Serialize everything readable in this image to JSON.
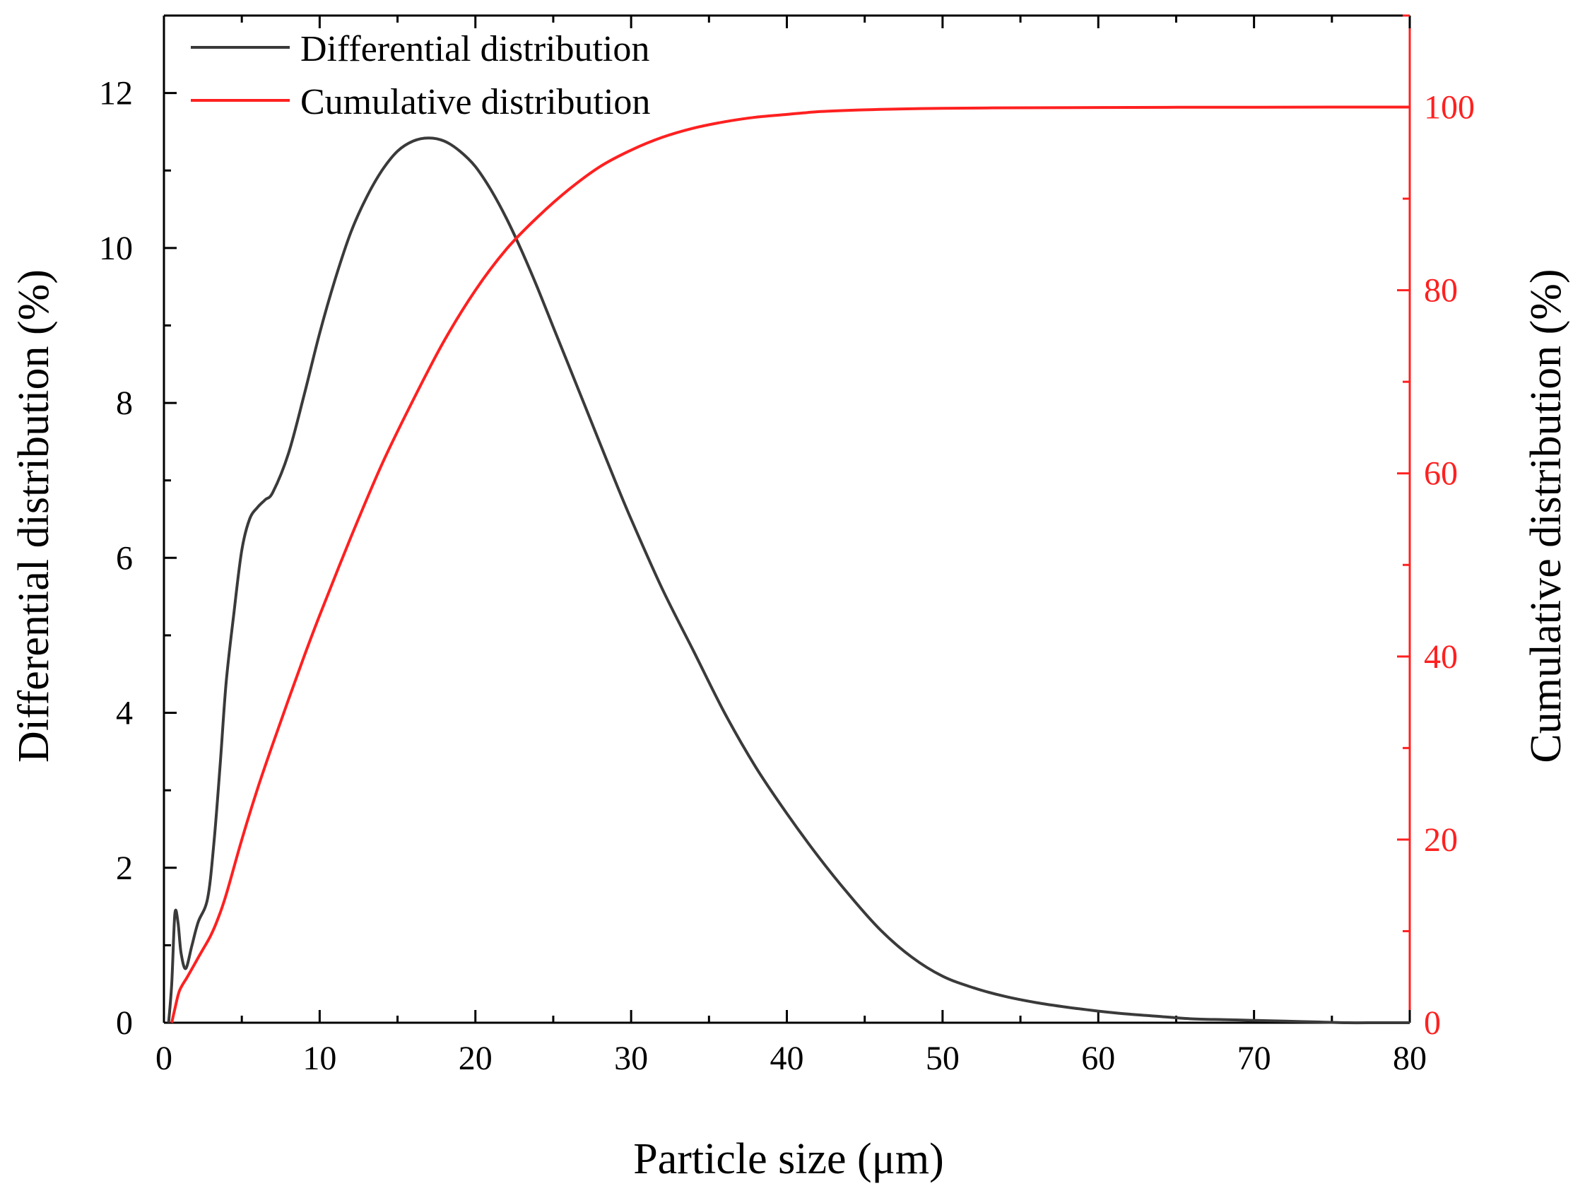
{
  "chart_data": {
    "type": "line",
    "x_label": "Particle size (μm)",
    "y_left_label": "Differential distribution (%)",
    "y_right_label": "Cumulative distribution (%)",
    "x_range": [
      0,
      80
    ],
    "y_left_range": [
      0,
      13
    ],
    "y_right_range": [
      0,
      110
    ],
    "x_ticks": [
      0,
      10,
      20,
      30,
      40,
      50,
      60,
      70,
      80
    ],
    "y_left_ticks": [
      0,
      2,
      4,
      6,
      8,
      10,
      12
    ],
    "y_right_ticks": [
      0,
      20,
      40,
      60,
      80,
      100
    ],
    "colors": {
      "differential": "#3a3a3a",
      "cumulative": "#ff2020",
      "right_axis": "#ff2020"
    },
    "legend": {
      "position": "top-left",
      "items": [
        "Differential distribution",
        "Cumulative distribution"
      ]
    },
    "series": [
      {
        "name": "Differential distribution",
        "axis": "left",
        "x": [
          0.3,
          0.5,
          0.7,
          0.9,
          1.1,
          1.4,
          1.8,
          2.2,
          2.8,
          3.2,
          3.6,
          4.0,
          4.5,
          5.0,
          5.5,
          6.0,
          6.5,
          7.0,
          8.0,
          9.0,
          10.0,
          11.0,
          12.0,
          13.0,
          14.0,
          15.0,
          16.0,
          17.0,
          18.0,
          19.0,
          20.0,
          21.0,
          22.0,
          23.0,
          24.0,
          25.0,
          26.0,
          27.0,
          28.0,
          29.0,
          30.0,
          32.0,
          34.0,
          36.0,
          38.0,
          40.0,
          42.0,
          44.0,
          46.0,
          48.0,
          50.0,
          52.0,
          54.0,
          56.0,
          58.0,
          60.0,
          62.0,
          64.0,
          66.0,
          68.0,
          70.0,
          72.0,
          74.0,
          76.0,
          78.0,
          80.0
        ],
        "y": [
          0.0,
          0.5,
          1.4,
          1.3,
          0.9,
          0.7,
          1.0,
          1.3,
          1.6,
          2.3,
          3.3,
          4.4,
          5.3,
          6.1,
          6.5,
          6.65,
          6.75,
          6.85,
          7.35,
          8.1,
          8.9,
          9.6,
          10.2,
          10.65,
          11.0,
          11.25,
          11.38,
          11.42,
          11.38,
          11.25,
          11.05,
          10.75,
          10.38,
          9.95,
          9.48,
          8.98,
          8.48,
          7.98,
          7.48,
          6.98,
          6.5,
          5.6,
          4.8,
          4.0,
          3.3,
          2.7,
          2.15,
          1.65,
          1.2,
          0.85,
          0.6,
          0.45,
          0.34,
          0.26,
          0.2,
          0.15,
          0.11,
          0.08,
          0.05,
          0.04,
          0.03,
          0.02,
          0.01,
          0.0,
          0.0,
          0.0
        ]
      },
      {
        "name": "Cumulative distribution",
        "axis": "right",
        "x": [
          0.5,
          0.7,
          1.0,
          1.5,
          2.0,
          2.5,
          3.0,
          3.5,
          4.0,
          5.0,
          6.0,
          7.0,
          8.0,
          9.0,
          10.0,
          12.0,
          14.0,
          16.0,
          18.0,
          20.0,
          22.0,
          24.0,
          26.0,
          28.0,
          30.0,
          32.0,
          34.0,
          36.0,
          38.0,
          40.0,
          42.0,
          44.0,
          46.0,
          48.0,
          50.0,
          55.0,
          60.0,
          65.0,
          70.0,
          75.0,
          80.0
        ],
        "y": [
          0.0,
          1.5,
          3.5,
          5.0,
          6.5,
          8.0,
          9.5,
          11.5,
          14.0,
          20.0,
          25.5,
          30.5,
          35.3,
          40.0,
          44.5,
          53.0,
          61.0,
          68.0,
          74.5,
          80.0,
          84.5,
          88.0,
          91.0,
          93.5,
          95.3,
          96.7,
          97.7,
          98.4,
          98.9,
          99.2,
          99.5,
          99.65,
          99.75,
          99.82,
          99.87,
          99.93,
          99.96,
          99.98,
          99.99,
          100.0,
          100.0
        ]
      }
    ]
  }
}
